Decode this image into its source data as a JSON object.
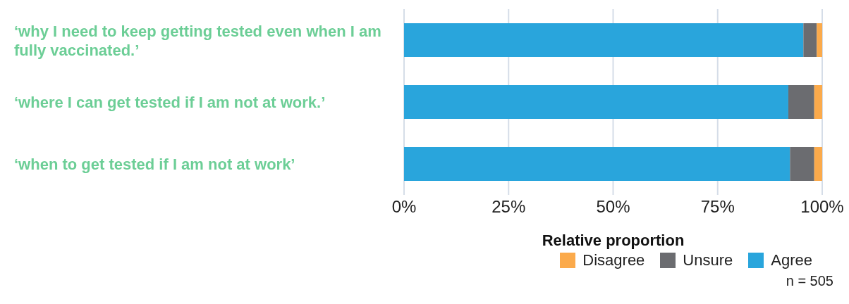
{
  "chart_data": {
    "type": "bar",
    "orientation": "horizontal",
    "stacked": true,
    "categories": [
      "‘why I need to keep getting tested even when I am fully vaccinated.’",
      "‘where I can get tested if I am not at work.’",
      "‘when to get tested if I am not at work’"
    ],
    "series": [
      {
        "name": "Agree",
        "color": "#29a5dc",
        "values": [
          95.5,
          91.9,
          92.3
        ]
      },
      {
        "name": "Unsure",
        "color": "#6b6c70",
        "values": [
          3.2,
          6.2,
          5.8
        ]
      },
      {
        "name": "Disagree",
        "color": "#fbaa4b",
        "values": [
          1.3,
          1.9,
          1.9
        ]
      }
    ],
    "xlim": [
      0,
      100
    ],
    "xticks": [
      {
        "value": 0,
        "label": "0%"
      },
      {
        "value": 25,
        "label": "25%"
      },
      {
        "value": 50,
        "label": "50%"
      },
      {
        "value": 75,
        "label": "75%"
      },
      {
        "value": 100,
        "label": "100%"
      }
    ],
    "xlabel": "Relative proportion",
    "grid": "x",
    "legend": "bottom right",
    "annotations": [
      "n = 505"
    ]
  }
}
